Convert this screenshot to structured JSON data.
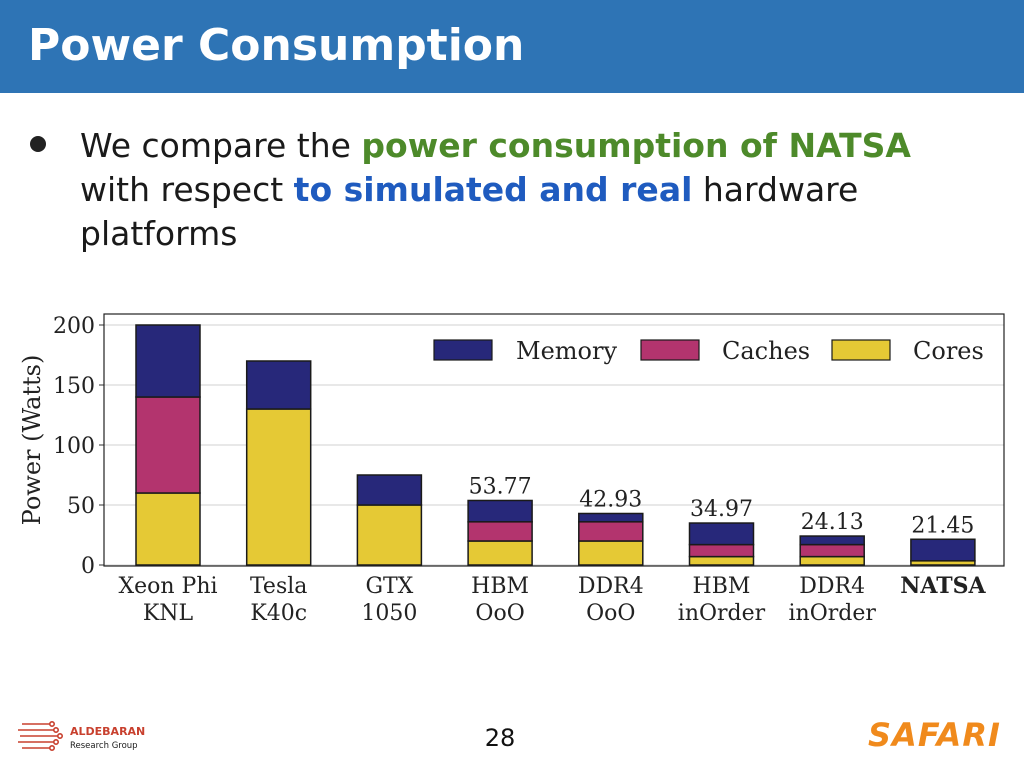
{
  "slide": {
    "title": "Power Consumption",
    "bullet": {
      "part1": "We compare the ",
      "highlight1": "power consumption of NATSA",
      "part2": " with respect ",
      "highlight2": "to simulated and real",
      "part3": " hardware platforms"
    },
    "page_number": "28"
  },
  "footer": {
    "left_logo_name": "ALDEBARAN",
    "left_logo_sub": "Research Group",
    "right_logo": "SAFARI"
  },
  "colors": {
    "title_bar": "#2e74b5",
    "highlight_green": "#4d8a2a",
    "highlight_blue": "#1f5bbf",
    "memory": "#27287a",
    "caches": "#b3346e",
    "cores": "#e5c935"
  },
  "chart_data": {
    "type": "bar",
    "stacked": true,
    "ylabel": "Power (Watts)",
    "ylim": [
      0,
      200
    ],
    "yticks": [
      0,
      50,
      100,
      150,
      200
    ],
    "grid": true,
    "legend_position": "top-right",
    "categories": [
      [
        "Xeon Phi",
        "KNL"
      ],
      [
        "Tesla",
        "K40c"
      ],
      [
        "GTX",
        "1050"
      ],
      [
        "HBM",
        "OoO"
      ],
      [
        "DDR4",
        "OoO"
      ],
      [
        "HBM",
        "inOrder"
      ],
      [
        "DDR4",
        "inOrder"
      ],
      [
        "NATSA"
      ]
    ],
    "bold_category_index": 7,
    "series": [
      {
        "name": "Cores",
        "color": "#e5c935",
        "values": [
          60,
          130,
          50,
          20,
          20,
          7,
          7,
          3.5
        ]
      },
      {
        "name": "Caches",
        "color": "#b3346e",
        "values": [
          80,
          0,
          0,
          16,
          16,
          10,
          10,
          0
        ]
      },
      {
        "name": "Memory",
        "color": "#27287a",
        "values": [
          60,
          40,
          25,
          17.77,
          6.93,
          17.97,
          7.13,
          17.95
        ]
      }
    ],
    "legend_order": [
      "Memory",
      "Caches",
      "Cores"
    ],
    "totals_labels": [
      null,
      null,
      null,
      "53.77",
      "42.93",
      "34.97",
      "24.13",
      "21.45"
    ]
  }
}
